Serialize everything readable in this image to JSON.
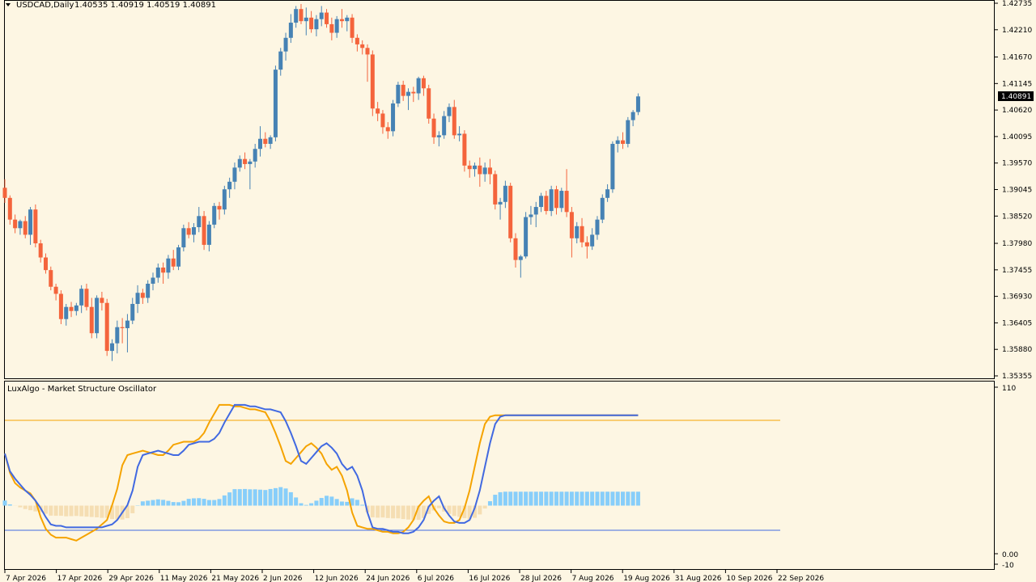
{
  "header": {
    "symbol": "USDCAD,Daily",
    "ohlc": "1.40535 1.40919 1.40519 1.40891"
  },
  "price_axis": {
    "ticks": [
      "1.42735",
      "1.42210",
      "1.41670",
      "1.41145",
      "1.40620",
      "1.40095",
      "1.39570",
      "1.39045",
      "1.38520",
      "1.37980",
      "1.37455",
      "1.36930",
      "1.36405",
      "1.35880",
      "1.35355"
    ],
    "current_price": "1.40891"
  },
  "indicator": {
    "title": "LuxAlgo - Market Structure Oscillator",
    "scale_top": "110",
    "scale_zero": "0.00",
    "scale_bottom": "-10"
  },
  "date_axis": [
    "7 Apr 2026",
    "17 Apr 2026",
    "29 Apr 2026",
    "11 May 2026",
    "21 May 2026",
    "2 Jun 2026",
    "12 Jun 2026",
    "24 Jun 2026",
    "6 Jul 2026",
    "16 Jul 2026",
    "28 Jul 2026",
    "7 Aug 2026",
    "19 Aug 2026",
    "31 Aug 2026",
    "10 Sep 2026",
    "22 Sep 2026"
  ],
  "colors": {
    "background": "#fdf6e3",
    "bull": "#4682b4",
    "bear": "#f4643c",
    "osc_blue": "#4169e1",
    "osc_orange": "#f5a300",
    "hist_pos": "#87cefa",
    "hist_neg": "#f5deb3",
    "upper_level": "#f5a300",
    "lower_level": "#4169e1"
  },
  "chart_data": [
    {
      "type": "candlestick",
      "title": "USDCAD,Daily",
      "ylim": [
        1.35355,
        1.42735
      ],
      "note": "values approximated from rendered candles",
      "candles": [
        [
          1.3908,
          1.3925,
          1.3878,
          1.3888
        ],
        [
          1.3888,
          1.3893,
          1.3835,
          1.3845
        ],
        [
          1.3845,
          1.3855,
          1.3818,
          1.3828
        ],
        [
          1.3828,
          1.3845,
          1.3815,
          1.3842
        ],
        [
          1.3842,
          1.3852,
          1.3808,
          1.3815
        ],
        [
          1.3815,
          1.387,
          1.3795,
          1.3865
        ],
        [
          1.3865,
          1.3875,
          1.379,
          1.3798
        ],
        [
          1.3798,
          1.3805,
          1.376,
          1.377
        ],
        [
          1.377,
          1.3778,
          1.3738,
          1.3745
        ],
        [
          1.3745,
          1.3752,
          1.3705,
          1.3712
        ],
        [
          1.3712,
          1.3718,
          1.3685,
          1.3698
        ],
        [
          1.3698,
          1.3705,
          1.3638,
          1.3648
        ],
        [
          1.3648,
          1.3678,
          1.3635,
          1.3672
        ],
        [
          1.3672,
          1.3682,
          1.3652,
          1.3664
        ],
        [
          1.3664,
          1.368,
          1.3655,
          1.3675
        ],
        [
          1.3675,
          1.3715,
          1.366,
          1.3708
        ],
        [
          1.3708,
          1.3718,
          1.3665,
          1.3672
        ],
        [
          1.3672,
          1.369,
          1.361,
          1.362
        ],
        [
          1.362,
          1.3695,
          1.361,
          1.369
        ],
        [
          1.369,
          1.3702,
          1.3665,
          1.368
        ],
        [
          1.368,
          1.3688,
          1.3575,
          1.3585
        ],
        [
          1.3585,
          1.3608,
          1.3565,
          1.36
        ],
        [
          1.36,
          1.3645,
          1.358,
          1.3632
        ],
        [
          1.3632,
          1.365,
          1.36,
          1.363
        ],
        [
          1.363,
          1.3658,
          1.3582,
          1.3645
        ],
        [
          1.3645,
          1.369,
          1.3638,
          1.3678
        ],
        [
          1.3678,
          1.3715,
          1.366,
          1.37
        ],
        [
          1.37,
          1.3708,
          1.3678,
          1.369
        ],
        [
          1.369,
          1.3725,
          1.368,
          1.3718
        ],
        [
          1.3718,
          1.374,
          1.3705,
          1.373
        ],
        [
          1.373,
          1.3758,
          1.372,
          1.375
        ],
        [
          1.375,
          1.376,
          1.3718,
          1.374
        ],
        [
          1.374,
          1.3775,
          1.3728,
          1.3768
        ],
        [
          1.3768,
          1.3785,
          1.3745,
          1.3752
        ],
        [
          1.3752,
          1.3795,
          1.3745,
          1.379
        ],
        [
          1.379,
          1.3835,
          1.3782,
          1.3828
        ],
        [
          1.3828,
          1.384,
          1.3808,
          1.3815
        ],
        [
          1.3815,
          1.3838,
          1.38,
          1.383
        ],
        [
          1.383,
          1.387,
          1.382,
          1.3852
        ],
        [
          1.3852,
          1.3862,
          1.3785,
          1.3795
        ],
        [
          1.3795,
          1.3842,
          1.3782,
          1.3835
        ],
        [
          1.3835,
          1.3878,
          1.3828,
          1.3872
        ],
        [
          1.3872,
          1.388,
          1.3845,
          1.3865
        ],
        [
          1.3865,
          1.3912,
          1.3855,
          1.3905
        ],
        [
          1.3905,
          1.3928,
          1.3888,
          1.392
        ],
        [
          1.392,
          1.3958,
          1.3905,
          1.3948
        ],
        [
          1.3948,
          1.3972,
          1.394,
          1.3965
        ],
        [
          1.3965,
          1.3978,
          1.3945,
          1.3955
        ],
        [
          1.3955,
          1.3965,
          1.3905,
          1.396
        ],
        [
          1.396,
          1.3995,
          1.3948,
          1.3985
        ],
        [
          1.3985,
          1.403,
          1.397,
          1.4005
        ],
        [
          1.4005,
          1.4018,
          1.3988,
          1.3995
        ],
        [
          1.3995,
          1.4012,
          1.3985,
          1.4008
        ],
        [
          1.4008,
          1.415,
          1.4,
          1.4142
        ],
        [
          1.4142,
          1.4185,
          1.413,
          1.4178
        ],
        [
          1.4178,
          1.4215,
          1.416,
          1.4205
        ],
        [
          1.4205,
          1.4252,
          1.4195,
          1.4235
        ],
        [
          1.4235,
          1.4268,
          1.4225,
          1.4262
        ],
        [
          1.4262,
          1.4272,
          1.4232,
          1.4238
        ],
        [
          1.4238,
          1.4265,
          1.421,
          1.4245
        ],
        [
          1.4245,
          1.4258,
          1.4215,
          1.4222
        ],
        [
          1.4222,
          1.425,
          1.4208,
          1.4242
        ],
        [
          1.4242,
          1.4268,
          1.4228,
          1.4255
        ],
        [
          1.4255,
          1.4262,
          1.4225,
          1.4232
        ],
        [
          1.4232,
          1.4245,
          1.42,
          1.4215
        ],
        [
          1.4215,
          1.4248,
          1.4205,
          1.4242
        ],
        [
          1.4242,
          1.4262,
          1.4225,
          1.4238
        ],
        [
          1.4238,
          1.425,
          1.4218,
          1.4245
        ],
        [
          1.4245,
          1.4252,
          1.4195,
          1.4205
        ],
        [
          1.4205,
          1.4212,
          1.4178,
          1.4192
        ],
        [
          1.4192,
          1.42,
          1.4172,
          1.4185
        ],
        [
          1.4185,
          1.4192,
          1.4118,
          1.4172
        ],
        [
          1.4172,
          1.418,
          1.405,
          1.4065
        ],
        [
          1.4065,
          1.4078,
          1.404,
          1.4055
        ],
        [
          1.4055,
          1.4062,
          1.4015,
          1.4028
        ],
        [
          1.4028,
          1.4038,
          1.4005,
          1.402
        ],
        [
          1.402,
          1.4082,
          1.401,
          1.4075
        ],
        [
          1.4075,
          1.4118,
          1.4068,
          1.4112
        ],
        [
          1.4112,
          1.412,
          1.408,
          1.409
        ],
        [
          1.409,
          1.4105,
          1.4062,
          1.4098
        ],
        [
          1.4098,
          1.4108,
          1.4078,
          1.4095
        ],
        [
          1.4095,
          1.4128,
          1.4082,
          1.4125
        ],
        [
          1.4125,
          1.413,
          1.409,
          1.4105
        ],
        [
          1.4105,
          1.4112,
          1.4035,
          1.4045
        ],
        [
          1.4045,
          1.4055,
          1.3995,
          1.4008
        ],
        [
          1.4008,
          1.402,
          1.399,
          1.4012
        ],
        [
          1.4012,
          1.406,
          1.4005,
          1.405
        ],
        [
          1.405,
          1.4075,
          1.4038,
          1.4068
        ],
        [
          1.4068,
          1.4082,
          1.4005,
          1.4012
        ],
        [
          1.4012,
          1.403,
          1.4,
          1.4015
        ],
        [
          1.4015,
          1.4022,
          1.394,
          1.3952
        ],
        [
          1.3952,
          1.3962,
          1.3928,
          1.3945
        ],
        [
          1.3945,
          1.3958,
          1.393,
          1.3952
        ],
        [
          1.3952,
          1.3968,
          1.391,
          1.3935
        ],
        [
          1.3935,
          1.3958,
          1.392,
          1.3948
        ],
        [
          1.3948,
          1.3965,
          1.3915,
          1.3935
        ],
        [
          1.3935,
          1.3942,
          1.3865,
          1.3875
        ],
        [
          1.3875,
          1.3888,
          1.3845,
          1.388
        ],
        [
          1.388,
          1.3922,
          1.3868,
          1.3912
        ],
        [
          1.3912,
          1.3918,
          1.38,
          1.3808
        ],
        [
          1.3808,
          1.3818,
          1.375,
          1.3765
        ],
        [
          1.3765,
          1.3775,
          1.373,
          1.3772
        ],
        [
          1.3772,
          1.386,
          1.3768,
          1.385
        ],
        [
          1.385,
          1.3872,
          1.3835,
          1.3855
        ],
        [
          1.3855,
          1.388,
          1.383,
          1.387
        ],
        [
          1.387,
          1.3898,
          1.386,
          1.3892
        ],
        [
          1.3892,
          1.3902,
          1.3855,
          1.3862
        ],
        [
          1.3862,
          1.3912,
          1.3852,
          1.3905
        ],
        [
          1.3905,
          1.3912,
          1.3855,
          1.3868
        ],
        [
          1.3868,
          1.3908,
          1.386,
          1.3902
        ],
        [
          1.3902,
          1.3945,
          1.385,
          1.386
        ],
        [
          1.386,
          1.387,
          1.377,
          1.3808
        ],
        [
          1.3808,
          1.384,
          1.3798,
          1.3832
        ],
        [
          1.3832,
          1.3848,
          1.379,
          1.38
        ],
        [
          1.38,
          1.3812,
          1.3768,
          1.3792
        ],
        [
          1.3792,
          1.3828,
          1.3785,
          1.3815
        ],
        [
          1.3815,
          1.3852,
          1.3805,
          1.3845
        ],
        [
          1.3845,
          1.3895,
          1.3838,
          1.3888
        ],
        [
          1.3888,
          1.3915,
          1.388,
          1.3905
        ],
        [
          1.3905,
          1.4,
          1.3898,
          1.3995
        ],
        [
          1.3995,
          1.401,
          1.3978,
          1.4002
        ],
        [
          1.4002,
          1.4018,
          1.3985,
          1.3995
        ],
        [
          1.3995,
          1.4048,
          1.3988,
          1.4042
        ],
        [
          1.4042,
          1.4062,
          1.403,
          1.4058
        ],
        [
          1.4058,
          1.4095,
          1.4052,
          1.4089
        ]
      ]
    },
    {
      "type": "line",
      "title": "LuxAlgo - Market Structure Oscillator",
      "ylim": [
        -10,
        110
      ],
      "note": "oscillator lines and histogram approximated",
      "series": [
        {
          "values": [
            65,
            53,
            48,
            44,
            40,
            37,
            33,
            28,
            22,
            17,
            16,
            16,
            15,
            15,
            15,
            15,
            15,
            15,
            15,
            15,
            16,
            17,
            20,
            25,
            30,
            40,
            56,
            64,
            65,
            66,
            67,
            66,
            65,
            64,
            64,
            67,
            71,
            72,
            73,
            73,
            73,
            75,
            79,
            86,
            92,
            98,
            98,
            98,
            97,
            97,
            96,
            95,
            95,
            94,
            93,
            87,
            79,
            70,
            60,
            58,
            62,
            66,
            70,
            72,
            69,
            65,
            58,
            54,
            56,
            50,
            40,
            25,
            15,
            14,
            14,
            13,
            12,
            12,
            11,
            11,
            12,
            15,
            20,
            29,
            33,
            36,
            28,
            23,
            19,
            18,
            18,
            20,
            28,
            40,
            56,
            72,
            85,
            90,
            91,
            91,
            91,
            91,
            91,
            91,
            91,
            91,
            91,
            91,
            91,
            91,
            91,
            91,
            91,
            91,
            91,
            91,
            91,
            91,
            91,
            91,
            91,
            91,
            91,
            91,
            91
          ]
        },
        {
          "values": [
            65,
            52,
            45,
            42,
            40,
            38,
            33,
            22,
            14,
            10,
            8,
            8,
            8,
            7,
            6,
            8,
            10,
            12,
            14,
            17,
            20,
            30,
            41,
            57,
            64,
            65,
            66,
            67,
            66,
            65,
            64,
            64,
            67,
            71,
            72,
            73,
            73,
            73,
            75,
            79,
            86,
            92,
            98,
            98,
            98,
            97,
            97,
            96,
            95,
            95,
            94,
            93,
            87,
            79,
            70,
            60,
            58,
            62,
            66,
            70,
            72,
            69,
            65,
            58,
            54,
            56,
            50,
            40,
            25,
            16,
            15,
            14,
            14,
            13,
            12,
            12,
            11,
            11,
            12,
            15,
            20,
            29,
            33,
            36,
            28,
            23,
            19,
            18,
            18,
            20,
            28,
            40,
            56,
            72,
            85,
            90,
            91,
            91,
            91,
            91,
            91,
            91,
            91,
            91,
            91,
            91,
            91,
            91,
            91,
            91,
            91,
            91,
            91,
            91,
            91,
            91,
            91,
            91,
            91,
            91,
            91,
            91,
            91,
            91,
            91
          ]
        }
      ]
    }
  ]
}
